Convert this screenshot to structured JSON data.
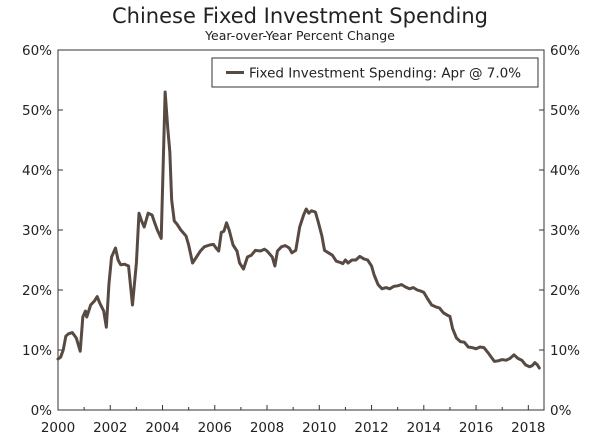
{
  "chart_data": {
    "type": "line",
    "title": "Chinese Fixed Investment Spending",
    "subtitle": "Year-over-Year Percent Change",
    "xlabel": "",
    "ylabel": "",
    "xlim": [
      2000,
      2018.6
    ],
    "ylim": [
      0,
      60
    ],
    "x_ticks": [
      2000,
      2002,
      2004,
      2006,
      2008,
      2010,
      2012,
      2014,
      2016,
      2018
    ],
    "x_tick_labels": [
      "2000",
      "2002",
      "2004",
      "2006",
      "2008",
      "2010",
      "2012",
      "2014",
      "2016",
      "2018"
    ],
    "y_ticks": [
      0,
      10,
      20,
      30,
      40,
      50,
      60
    ],
    "y_tick_labels": [
      "0%",
      "10%",
      "20%",
      "30%",
      "40%",
      "50%",
      "60%"
    ],
    "grid": false,
    "legend_position": "top-right",
    "series": [
      {
        "name": "Fixed Investment Spending: Apr @ 7.0%",
        "color": "#574a42",
        "points": [
          [
            2000.0,
            8.5
          ],
          [
            2000.1,
            8.8
          ],
          [
            2000.2,
            10.0
          ],
          [
            2000.3,
            12.3
          ],
          [
            2000.4,
            12.7
          ],
          [
            2000.55,
            12.9
          ],
          [
            2000.7,
            12.0
          ],
          [
            2000.85,
            9.8
          ],
          [
            2000.95,
            15.5
          ],
          [
            2001.05,
            16.5
          ],
          [
            2001.1,
            15.5
          ],
          [
            2001.25,
            17.5
          ],
          [
            2001.4,
            18.2
          ],
          [
            2001.5,
            18.9
          ],
          [
            2001.6,
            17.8
          ],
          [
            2001.75,
            16.5
          ],
          [
            2001.85,
            13.8
          ],
          [
            2001.95,
            21.0
          ],
          [
            2002.05,
            25.5
          ],
          [
            2002.2,
            27.0
          ],
          [
            2002.3,
            25.0
          ],
          [
            2002.4,
            24.2
          ],
          [
            2002.55,
            24.3
          ],
          [
            2002.7,
            24.0
          ],
          [
            2002.85,
            17.5
          ],
          [
            2003.0,
            24.5
          ],
          [
            2003.1,
            32.8
          ],
          [
            2003.2,
            31.5
          ],
          [
            2003.3,
            30.5
          ],
          [
            2003.45,
            32.8
          ],
          [
            2003.6,
            32.5
          ],
          [
            2003.7,
            31.2
          ],
          [
            2003.8,
            30.0
          ],
          [
            2003.95,
            28.6
          ],
          [
            2004.1,
            53.0
          ],
          [
            2004.2,
            47.0
          ],
          [
            2004.28,
            43.0
          ],
          [
            2004.35,
            35.0
          ],
          [
            2004.45,
            31.5
          ],
          [
            2004.55,
            31.0
          ],
          [
            2004.7,
            30.0
          ],
          [
            2004.9,
            29.0
          ],
          [
            2005.0,
            27.5
          ],
          [
            2005.15,
            24.5
          ],
          [
            2005.3,
            25.5
          ],
          [
            2005.45,
            26.5
          ],
          [
            2005.6,
            27.2
          ],
          [
            2005.8,
            27.5
          ],
          [
            2005.95,
            27.6
          ],
          [
            2006.05,
            27.0
          ],
          [
            2006.15,
            26.5
          ],
          [
            2006.25,
            29.6
          ],
          [
            2006.35,
            29.8
          ],
          [
            2006.45,
            31.2
          ],
          [
            2006.55,
            30.0
          ],
          [
            2006.7,
            27.5
          ],
          [
            2006.85,
            26.5
          ],
          [
            2006.95,
            24.5
          ],
          [
            2007.1,
            23.5
          ],
          [
            2007.25,
            25.5
          ],
          [
            2007.4,
            25.8
          ],
          [
            2007.55,
            26.6
          ],
          [
            2007.75,
            26.5
          ],
          [
            2007.9,
            26.8
          ],
          [
            2008.0,
            26.5
          ],
          [
            2008.2,
            25.5
          ],
          [
            2008.3,
            24.0
          ],
          [
            2008.4,
            26.5
          ],
          [
            2008.55,
            27.2
          ],
          [
            2008.7,
            27.4
          ],
          [
            2008.85,
            27.0
          ],
          [
            2008.95,
            26.2
          ],
          [
            2009.1,
            26.6
          ],
          [
            2009.25,
            30.5
          ],
          [
            2009.4,
            32.5
          ],
          [
            2009.5,
            33.5
          ],
          [
            2009.6,
            32.8
          ],
          [
            2009.7,
            33.2
          ],
          [
            2009.85,
            33.0
          ],
          [
            2009.95,
            31.5
          ],
          [
            2010.1,
            29.0
          ],
          [
            2010.2,
            26.6
          ],
          [
            2010.35,
            26.2
          ],
          [
            2010.5,
            25.8
          ],
          [
            2010.65,
            24.8
          ],
          [
            2010.8,
            24.6
          ],
          [
            2010.9,
            24.4
          ],
          [
            2011.0,
            25.0
          ],
          [
            2011.1,
            24.5
          ],
          [
            2011.25,
            25.0
          ],
          [
            2011.4,
            25.0
          ],
          [
            2011.55,
            25.6
          ],
          [
            2011.7,
            25.2
          ],
          [
            2011.85,
            25.0
          ],
          [
            2012.0,
            24.0
          ],
          [
            2012.1,
            22.5
          ],
          [
            2012.25,
            20.9
          ],
          [
            2012.4,
            20.2
          ],
          [
            2012.55,
            20.4
          ],
          [
            2012.7,
            20.2
          ],
          [
            2012.85,
            20.6
          ],
          [
            2013.0,
            20.7
          ],
          [
            2013.15,
            20.9
          ],
          [
            2013.3,
            20.5
          ],
          [
            2013.45,
            20.2
          ],
          [
            2013.6,
            20.4
          ],
          [
            2013.75,
            20.0
          ],
          [
            2013.9,
            19.8
          ],
          [
            2014.0,
            19.6
          ],
          [
            2014.15,
            18.5
          ],
          [
            2014.3,
            17.5
          ],
          [
            2014.45,
            17.2
          ],
          [
            2014.6,
            17.0
          ],
          [
            2014.75,
            16.2
          ],
          [
            2014.9,
            15.8
          ],
          [
            2015.0,
            15.6
          ],
          [
            2015.1,
            13.6
          ],
          [
            2015.25,
            12.0
          ],
          [
            2015.4,
            11.4
          ],
          [
            2015.55,
            11.3
          ],
          [
            2015.7,
            10.5
          ],
          [
            2015.85,
            10.4
          ],
          [
            2016.0,
            10.2
          ],
          [
            2016.15,
            10.5
          ],
          [
            2016.3,
            10.4
          ],
          [
            2016.45,
            9.6
          ],
          [
            2016.55,
            9.0
          ],
          [
            2016.7,
            8.1
          ],
          [
            2016.85,
            8.2
          ],
          [
            2017.0,
            8.4
          ],
          [
            2017.15,
            8.3
          ],
          [
            2017.3,
            8.6
          ],
          [
            2017.45,
            9.2
          ],
          [
            2017.6,
            8.6
          ],
          [
            2017.75,
            8.3
          ],
          [
            2017.9,
            7.5
          ],
          [
            2018.05,
            7.2
          ],
          [
            2018.15,
            7.4
          ],
          [
            2018.25,
            7.9
          ],
          [
            2018.35,
            7.5
          ],
          [
            2018.42,
            7.0
          ]
        ]
      }
    ]
  }
}
